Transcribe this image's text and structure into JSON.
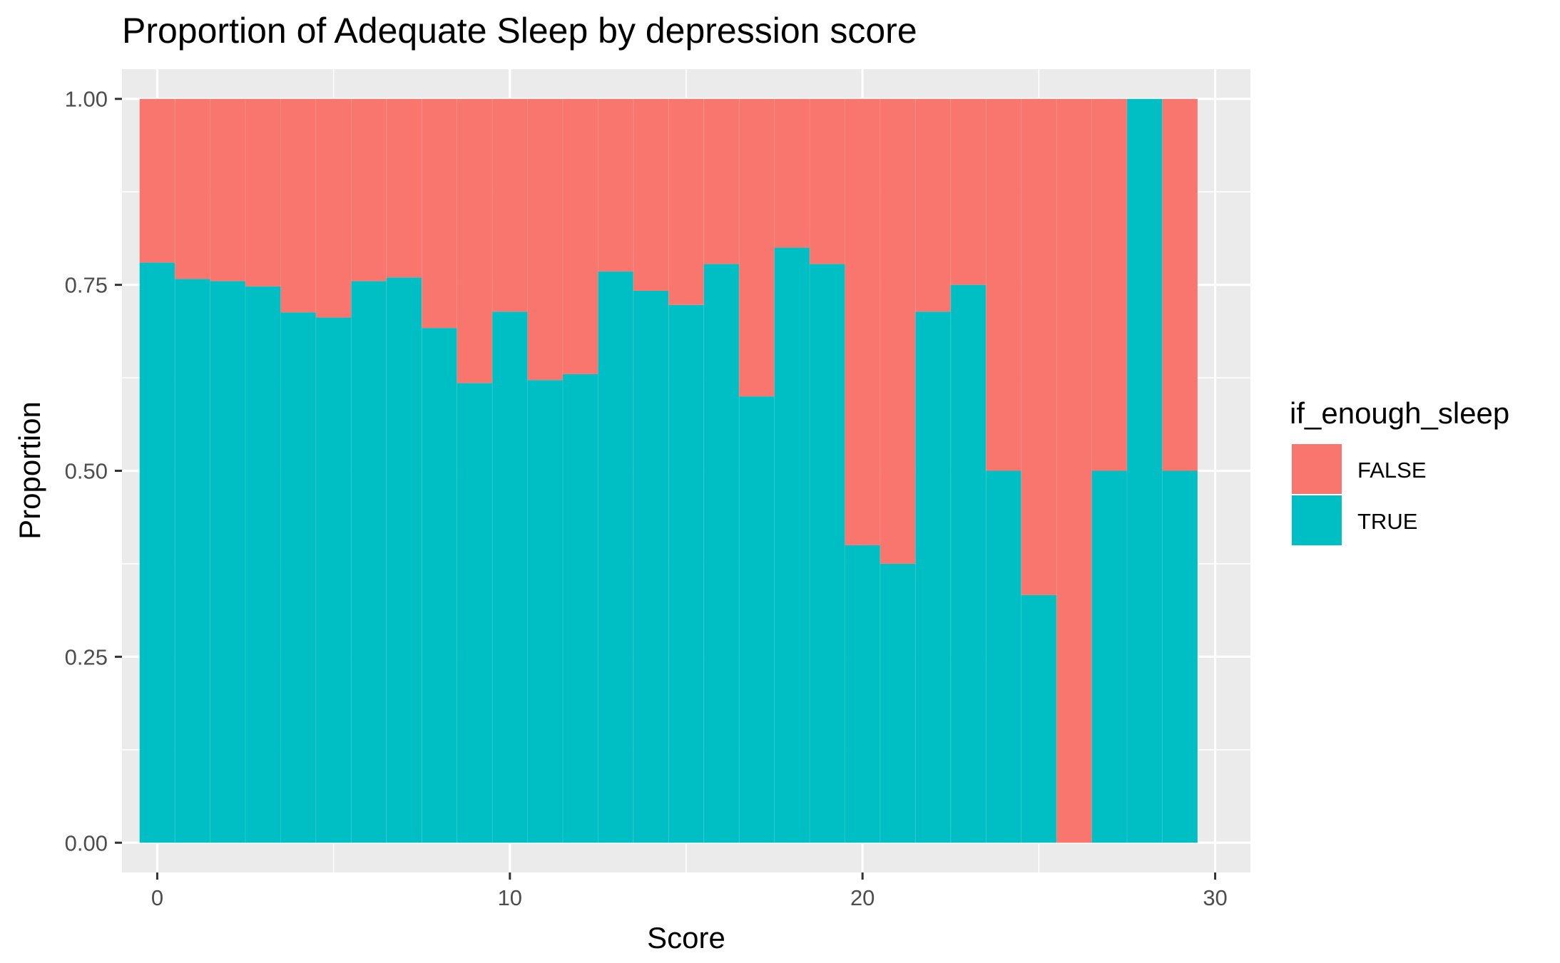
{
  "chart_data": {
    "type": "bar",
    "subtype": "stacked-proportion",
    "title": "Proportion of Adequate Sleep by depression score",
    "xlabel": "Score",
    "ylabel": "Proportion",
    "xlim": [
      -1,
      31
    ],
    "ylim": [
      -0.04,
      1.04
    ],
    "x_ticks": [
      0,
      10,
      20,
      30
    ],
    "x_tick_labels": [
      "0",
      "10",
      "20",
      "30"
    ],
    "y_ticks": [
      0,
      0.25,
      0.5,
      0.75,
      1
    ],
    "y_tick_labels": [
      "0.00",
      "0.25",
      "0.50",
      "0.75",
      "1.00"
    ],
    "grid": true,
    "legend": {
      "title": "if_enough_sleep",
      "position": "right",
      "entries": [
        {
          "label": "FALSE",
          "color": "#F8766D"
        },
        {
          "label": "TRUE",
          "color": "#00BFC4"
        }
      ]
    },
    "x": [
      0,
      1,
      2,
      3,
      4,
      5,
      6,
      7,
      8,
      9,
      10,
      11,
      12,
      13,
      14,
      15,
      16,
      17,
      18,
      19,
      20,
      21,
      22,
      23,
      24,
      25,
      26,
      27,
      28,
      29
    ],
    "series": [
      {
        "name": "TRUE",
        "color": "#00BFC4",
        "values": [
          0.78,
          0.758,
          0.755,
          0.748,
          0.713,
          0.706,
          0.755,
          0.76,
          0.692,
          0.618,
          0.714,
          0.622,
          0.63,
          0.768,
          0.742,
          0.723,
          0.778,
          0.6,
          0.8,
          0.778,
          0.4,
          0.375,
          0.714,
          0.75,
          0.5,
          0.333,
          0.0,
          0.5,
          1.0,
          0.5
        ]
      },
      {
        "name": "FALSE",
        "color": "#F8766D",
        "values": [
          0.22,
          0.242,
          0.245,
          0.252,
          0.287,
          0.294,
          0.245,
          0.24,
          0.308,
          0.382,
          0.286,
          0.378,
          0.37,
          0.232,
          0.258,
          0.277,
          0.222,
          0.4,
          0.2,
          0.222,
          0.6,
          0.625,
          0.286,
          0.25,
          0.5,
          0.667,
          1.0,
          0.5,
          0.0,
          0.5
        ]
      }
    ],
    "panel_background": "#EBEBEB",
    "grid_color": "#FFFFFF"
  }
}
